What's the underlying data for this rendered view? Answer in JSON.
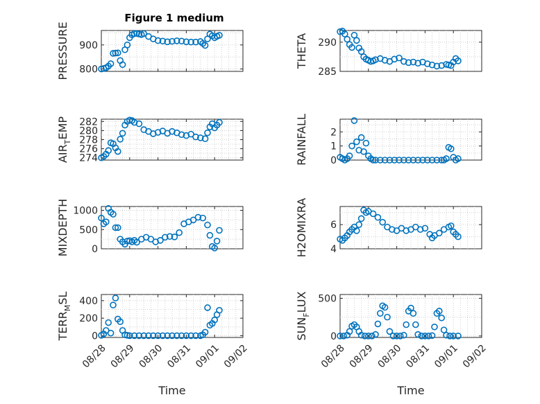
{
  "figure_title": "Figure 1 medium",
  "colors": {
    "marker": "#0072bd",
    "axes": "#262626"
  },
  "chart_data": [
    {
      "type": "scatter",
      "ylabel": "PRESSURE",
      "xlim": [
        "2022-08-28",
        "2022-09-02"
      ],
      "ylim": [
        790,
        960
      ],
      "yticks": [
        800,
        900
      ],
      "xticklabels": [],
      "xlabel": "",
      "grid": true,
      "x": [
        "2022-08-28T00:00",
        "2022-08-28T02:00",
        "2022-08-28T04:00",
        "2022-08-28T06:00",
        "2022-08-28T08:00",
        "2022-08-28T10:00",
        "2022-08-28T12:00",
        "2022-08-28T14:00",
        "2022-08-28T16:00",
        "2022-08-28T18:00",
        "2022-08-28T20:00",
        "2022-08-28T22:00",
        "2022-08-29T00:00",
        "2022-08-29T02:00",
        "2022-08-29T04:00",
        "2022-08-29T06:00",
        "2022-08-29T08:00",
        "2022-08-29T10:00",
        "2022-08-29T12:00",
        "2022-08-29T16:00",
        "2022-08-29T20:00",
        "2022-08-30T00:00",
        "2022-08-30T04:00",
        "2022-08-30T08:00",
        "2022-08-30T12:00",
        "2022-08-30T16:00",
        "2022-08-30T20:00",
        "2022-08-31T00:00",
        "2022-08-31T04:00",
        "2022-08-31T08:00",
        "2022-08-31T12:00",
        "2022-08-31T14:00",
        "2022-08-31T16:00",
        "2022-08-31T18:00",
        "2022-08-31T20:00",
        "2022-08-31T22:00",
        "2022-09-01T00:00",
        "2022-09-01T02:00",
        "2022-09-01T04:00"
      ],
      "y": [
        800,
        802,
        805,
        812,
        822,
        865,
        866,
        867,
        835,
        818,
        880,
        900,
        930,
        942,
        947,
        948,
        945,
        943,
        947,
        935,
        925,
        918,
        916,
        913,
        915,
        917,
        916,
        913,
        912,
        912,
        914,
        906,
        898,
        925,
        945,
        938,
        930,
        936,
        940
      ]
    },
    {
      "type": "scatter",
      "ylabel": "THETA",
      "xlim": [
        "2022-08-28",
        "2022-09-02"
      ],
      "ylim": [
        285,
        292
      ],
      "yticks": [
        285,
        290
      ],
      "xticklabels": [],
      "xlabel": "",
      "grid": true,
      "x": [
        "2022-08-28T00:00",
        "2022-08-28T02:00",
        "2022-08-28T04:00",
        "2022-08-28T06:00",
        "2022-08-28T08:00",
        "2022-08-28T10:00",
        "2022-08-28T12:00",
        "2022-08-28T14:00",
        "2022-08-28T16:00",
        "2022-08-28T18:00",
        "2022-08-28T20:00",
        "2022-08-28T22:00",
        "2022-08-29T00:00",
        "2022-08-29T02:00",
        "2022-08-29T04:00",
        "2022-08-29T06:00",
        "2022-08-29T10:00",
        "2022-08-29T14:00",
        "2022-08-29T18:00",
        "2022-08-29T22:00",
        "2022-08-30T02:00",
        "2022-08-30T06:00",
        "2022-08-30T10:00",
        "2022-08-30T14:00",
        "2022-08-30T18:00",
        "2022-08-30T22:00",
        "2022-08-31T02:00",
        "2022-08-31T06:00",
        "2022-08-31T10:00",
        "2022-08-31T14:00",
        "2022-08-31T18:00",
        "2022-08-31T20:00",
        "2022-08-31T22:00",
        "2022-09-01T00:00",
        "2022-09-01T02:00",
        "2022-09-01T04:00"
      ],
      "y": [
        291.8,
        291.9,
        291.4,
        290.5,
        289.6,
        289.1,
        291.2,
        290.3,
        289.0,
        288.4,
        287.5,
        287.1,
        286.9,
        286.7,
        286.8,
        287.0,
        287.2,
        286.9,
        286.7,
        287.1,
        287.3,
        286.7,
        286.5,
        286.6,
        286.4,
        286.6,
        286.3,
        286.1,
        285.9,
        286.0,
        286.2,
        286.1,
        286.0,
        286.6,
        287.2,
        286.8
      ]
    },
    {
      "type": "scatter",
      "ylabel": "AIR_TEMP",
      "xlim": [
        "2022-08-28",
        "2022-09-02"
      ],
      "ylim": [
        273.5,
        282.5
      ],
      "yticks": [
        274,
        276,
        278,
        280,
        282
      ],
      "xticklabels": [],
      "xlabel": "",
      "grid": true,
      "x": [
        "2022-08-28T00:00",
        "2022-08-28T02:00",
        "2022-08-28T04:00",
        "2022-08-28T06:00",
        "2022-08-28T08:00",
        "2022-08-28T10:00",
        "2022-08-28T12:00",
        "2022-08-28T14:00",
        "2022-08-28T16:00",
        "2022-08-28T18:00",
        "2022-08-28T20:00",
        "2022-08-28T22:00",
        "2022-08-29T00:00",
        "2022-08-29T02:00",
        "2022-08-29T04:00",
        "2022-08-29T08:00",
        "2022-08-29T12:00",
        "2022-08-29T16:00",
        "2022-08-29T20:00",
        "2022-08-30T00:00",
        "2022-08-30T04:00",
        "2022-08-30T08:00",
        "2022-08-30T12:00",
        "2022-08-30T16:00",
        "2022-08-30T20:00",
        "2022-08-31T00:00",
        "2022-08-31T04:00",
        "2022-08-31T08:00",
        "2022-08-31T12:00",
        "2022-08-31T16:00",
        "2022-08-31T18:00",
        "2022-08-31T20:00",
        "2022-08-31T22:00",
        "2022-09-01T00:00",
        "2022-09-01T02:00",
        "2022-09-01T04:00"
      ],
      "y": [
        274.0,
        274.3,
        274.8,
        275.6,
        277.3,
        277.1,
        276.2,
        275.4,
        278.1,
        279.4,
        281.2,
        282.0,
        282.3,
        282.2,
        281.8,
        281.5,
        280.2,
        279.8,
        279.3,
        279.6,
        279.9,
        279.4,
        279.8,
        279.5,
        279.1,
        278.9,
        279.2,
        278.6,
        278.4,
        278.2,
        279.5,
        280.8,
        281.5,
        280.6,
        281.2,
        281.8
      ]
    },
    {
      "type": "scatter",
      "ylabel": "RAINFALL",
      "xlim": [
        "2022-08-28",
        "2022-09-02"
      ],
      "ylim": [
        0,
        2.9
      ],
      "yticks": [
        0,
        1,
        2
      ],
      "xticklabels": [],
      "xlabel": "",
      "grid": true,
      "x": [
        "2022-08-28T00:00",
        "2022-08-28T02:00",
        "2022-08-28T04:00",
        "2022-08-28T06:00",
        "2022-08-28T08:00",
        "2022-08-28T10:00",
        "2022-08-28T12:00",
        "2022-08-28T14:00",
        "2022-08-28T16:00",
        "2022-08-28T18:00",
        "2022-08-28T20:00",
        "2022-08-28T22:00",
        "2022-08-29T00:00",
        "2022-08-29T02:00",
        "2022-08-29T04:00",
        "2022-08-29T06:00",
        "2022-08-29T10:00",
        "2022-08-29T14:00",
        "2022-08-29T18:00",
        "2022-08-29T22:00",
        "2022-08-30T02:00",
        "2022-08-30T06:00",
        "2022-08-30T10:00",
        "2022-08-30T14:00",
        "2022-08-30T18:00",
        "2022-08-30T22:00",
        "2022-08-31T02:00",
        "2022-08-31T06:00",
        "2022-08-31T10:00",
        "2022-08-31T14:00",
        "2022-08-31T16:00",
        "2022-08-31T18:00",
        "2022-08-31T20:00",
        "2022-08-31T22:00",
        "2022-09-01T00:00",
        "2022-09-01T02:00",
        "2022-09-01T04:00"
      ],
      "y": [
        0.2,
        0.1,
        0.0,
        0.1,
        0.3,
        1.0,
        2.8,
        1.3,
        0.7,
        1.6,
        0.6,
        1.2,
        0.3,
        0.1,
        0.0,
        0.0,
        0.0,
        0.0,
        0.0,
        0.0,
        0.0,
        0.0,
        0.0,
        0.0,
        0.0,
        0.0,
        0.0,
        0.0,
        0.0,
        0.0,
        0.0,
        0.1,
        0.9,
        0.8,
        0.2,
        0.0,
        0.1
      ]
    },
    {
      "type": "scatter",
      "ylabel": "MIXDEPTH",
      "xlim": [
        "2022-08-28",
        "2022-09-02"
      ],
      "ylim": [
        0,
        1100
      ],
      "yticks": [
        0,
        500,
        1000
      ],
      "xticklabels": [],
      "xlabel": "",
      "grid": true,
      "x": [
        "2022-08-28T00:00",
        "2022-08-28T02:00",
        "2022-08-28T04:00",
        "2022-08-28T06:00",
        "2022-08-28T08:00",
        "2022-08-28T10:00",
        "2022-08-28T12:00",
        "2022-08-28T14:00",
        "2022-08-28T16:00",
        "2022-08-28T18:00",
        "2022-08-28T20:00",
        "2022-08-28T22:00",
        "2022-08-29T00:00",
        "2022-08-29T02:00",
        "2022-08-29T04:00",
        "2022-08-29T06:00",
        "2022-08-29T10:00",
        "2022-08-29T14:00",
        "2022-08-29T18:00",
        "2022-08-29T22:00",
        "2022-08-30T02:00",
        "2022-08-30T06:00",
        "2022-08-30T10:00",
        "2022-08-30T14:00",
        "2022-08-30T18:00",
        "2022-08-30T22:00",
        "2022-08-31T02:00",
        "2022-08-31T06:00",
        "2022-08-31T10:00",
        "2022-08-31T14:00",
        "2022-08-31T18:00",
        "2022-08-31T20:00",
        "2022-08-31T22:00",
        "2022-09-01T00:00",
        "2022-09-01T02:00",
        "2022-09-01T04:00"
      ],
      "y": [
        800,
        650,
        700,
        1050,
        950,
        900,
        550,
        550,
        250,
        180,
        120,
        200,
        210,
        180,
        220,
        170,
        250,
        300,
        250,
        180,
        220,
        300,
        320,
        310,
        420,
        650,
        700,
        750,
        820,
        800,
        620,
        350,
        60,
        20,
        200,
        480
      ]
    },
    {
      "type": "scatter",
      "ylabel": "H2OMIXRA",
      "xlim": [
        "2022-08-28",
        "2022-09-02"
      ],
      "ylim": [
        4,
        7.5
      ],
      "yticks": [
        4,
        6
      ],
      "xticklabels": [],
      "xlabel": "",
      "grid": true,
      "x": [
        "2022-08-28T00:00",
        "2022-08-28T02:00",
        "2022-08-28T04:00",
        "2022-08-28T06:00",
        "2022-08-28T08:00",
        "2022-08-28T10:00",
        "2022-08-28T12:00",
        "2022-08-28T14:00",
        "2022-08-28T16:00",
        "2022-08-28T18:00",
        "2022-08-28T20:00",
        "2022-08-28T22:00",
        "2022-08-29T00:00",
        "2022-08-29T04:00",
        "2022-08-29T08:00",
        "2022-08-29T12:00",
        "2022-08-29T16:00",
        "2022-08-29T20:00",
        "2022-08-30T00:00",
        "2022-08-30T04:00",
        "2022-08-30T08:00",
        "2022-08-30T12:00",
        "2022-08-30T16:00",
        "2022-08-30T20:00",
        "2022-08-31T00:00",
        "2022-08-31T04:00",
        "2022-08-31T06:00",
        "2022-08-31T08:00",
        "2022-08-31T12:00",
        "2022-08-31T16:00",
        "2022-08-31T20:00",
        "2022-08-31T22:00",
        "2022-09-01T00:00",
        "2022-09-01T02:00",
        "2022-09-01T04:00"
      ],
      "y": [
        4.8,
        4.7,
        4.9,
        5.1,
        5.4,
        5.6,
        5.8,
        5.5,
        6.0,
        6.5,
        7.2,
        7.0,
        7.1,
        6.9,
        6.6,
        6.2,
        5.8,
        5.6,
        5.5,
        5.7,
        5.5,
        5.6,
        5.8,
        5.6,
        5.7,
        5.2,
        4.9,
        5.1,
        5.3,
        5.6,
        5.8,
        5.9,
        5.4,
        5.2,
        5.0
      ]
    },
    {
      "type": "scatter",
      "ylabel": "TERR_MSL",
      "xlim": [
        "2022-08-28",
        "2022-09-02"
      ],
      "ylim": [
        -20,
        470
      ],
      "yticks": [
        0,
        200,
        400
      ],
      "xticklabels": [
        "08/28",
        "08/29",
        "08/30",
        "08/31",
        "09/01",
        "09/02"
      ],
      "xlabel": "Time",
      "grid": true,
      "x": [
        "2022-08-28T00:00",
        "2022-08-28T02:00",
        "2022-08-28T04:00",
        "2022-08-28T06:00",
        "2022-08-28T08:00",
        "2022-08-28T10:00",
        "2022-08-28T12:00",
        "2022-08-28T14:00",
        "2022-08-28T16:00",
        "2022-08-28T18:00",
        "2022-08-28T20:00",
        "2022-08-28T22:00",
        "2022-08-29T00:00",
        "2022-08-29T04:00",
        "2022-08-29T08:00",
        "2022-08-29T12:00",
        "2022-08-29T16:00",
        "2022-08-29T20:00",
        "2022-08-30T00:00",
        "2022-08-30T04:00",
        "2022-08-30T08:00",
        "2022-08-30T12:00",
        "2022-08-30T16:00",
        "2022-08-30T20:00",
        "2022-08-31T00:00",
        "2022-08-31T04:00",
        "2022-08-31T08:00",
        "2022-08-31T12:00",
        "2022-08-31T14:00",
        "2022-08-31T16:00",
        "2022-08-31T18:00",
        "2022-08-31T20:00",
        "2022-08-31T22:00",
        "2022-09-01T00:00",
        "2022-09-01T02:00",
        "2022-09-01T04:00"
      ],
      "y": [
        5,
        20,
        60,
        150,
        30,
        350,
        430,
        190,
        160,
        60,
        10,
        5,
        0,
        0,
        0,
        0,
        0,
        0,
        0,
        0,
        0,
        0,
        0,
        0,
        0,
        0,
        0,
        0,
        10,
        40,
        320,
        120,
        140,
        180,
        240,
        290
      ]
    },
    {
      "type": "scatter",
      "ylabel": "SUN_FLUX",
      "xlim": [
        "2022-08-28",
        "2022-09-02"
      ],
      "ylim": [
        -20,
        550
      ],
      "yticks": [
        0,
        500
      ],
      "xticklabels": [
        "08/28",
        "08/29",
        "08/30",
        "08/31",
        "09/01",
        "09/02"
      ],
      "xlabel": "Time",
      "grid": true,
      "x": [
        "2022-08-28T00:00",
        "2022-08-28T03:00",
        "2022-08-28T06:00",
        "2022-08-28T08:00",
        "2022-08-28T10:00",
        "2022-08-28T12:00",
        "2022-08-28T14:00",
        "2022-08-28T16:00",
        "2022-08-28T18:00",
        "2022-08-28T21:00",
        "2022-08-29T00:00",
        "2022-08-29T03:00",
        "2022-08-29T06:00",
        "2022-08-29T08:00",
        "2022-08-29T10:00",
        "2022-08-29T12:00",
        "2022-08-29T14:00",
        "2022-08-29T16:00",
        "2022-08-29T18:00",
        "2022-08-29T21:00",
        "2022-08-30T00:00",
        "2022-08-30T03:00",
        "2022-08-30T06:00",
        "2022-08-30T08:00",
        "2022-08-30T10:00",
        "2022-08-30T12:00",
        "2022-08-30T14:00",
        "2022-08-30T16:00",
        "2022-08-30T18:00",
        "2022-08-30T21:00",
        "2022-08-31T00:00",
        "2022-08-31T03:00",
        "2022-08-31T06:00",
        "2022-08-31T08:00",
        "2022-08-31T10:00",
        "2022-08-31T12:00",
        "2022-08-31T14:00",
        "2022-08-31T16:00",
        "2022-08-31T18:00",
        "2022-08-31T21:00",
        "2022-09-01T00:00",
        "2022-09-01T04:00"
      ],
      "y": [
        0,
        0,
        10,
        60,
        130,
        150,
        120,
        60,
        10,
        0,
        0,
        0,
        20,
        160,
        300,
        400,
        380,
        250,
        60,
        0,
        0,
        0,
        10,
        150,
        330,
        370,
        300,
        150,
        20,
        0,
        0,
        0,
        5,
        120,
        300,
        330,
        240,
        80,
        10,
        0,
        0,
        0
      ]
    }
  ]
}
